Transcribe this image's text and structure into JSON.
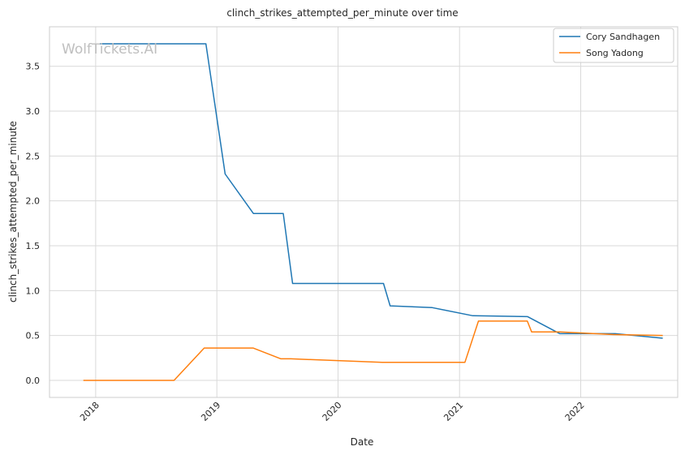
{
  "chart_data": {
    "type": "line",
    "title": "clinch_strikes_attempted_per_minute over time",
    "xlabel": "Date",
    "ylabel": "clinch_strikes_attempted_per_minute",
    "watermark": "WolfTickets.AI",
    "xlim": [
      "2017-08-15",
      "2022-10-20"
    ],
    "ylim": [
      -0.19,
      3.94
    ],
    "x_ticks": [
      "2018",
      "2019",
      "2020",
      "2021",
      "2022"
    ],
    "y_ticks": [
      "0.0",
      "0.5",
      "1.0",
      "1.5",
      "2.0",
      "2.5",
      "3.0",
      "3.5"
    ],
    "grid": true,
    "legend_position": "upper right",
    "series": [
      {
        "name": "Cory Sandhagen",
        "color": "#1f77b4",
        "points": [
          [
            "2018-01-14",
            3.75
          ],
          [
            "2018-11-29",
            3.75
          ],
          [
            "2019-01-26",
            2.3
          ],
          [
            "2019-04-21",
            1.86
          ],
          [
            "2019-07-20",
            1.86
          ],
          [
            "2019-08-17",
            1.08
          ],
          [
            "2020-05-17",
            1.08
          ],
          [
            "2020-06-06",
            0.83
          ],
          [
            "2020-10-11",
            0.81
          ],
          [
            "2021-02-10",
            0.72
          ],
          [
            "2021-07-25",
            0.71
          ],
          [
            "2021-10-30",
            0.52
          ],
          [
            "2022-04-15",
            0.52
          ],
          [
            "2022-09-05",
            0.47
          ]
        ]
      },
      {
        "name": "Song Yadong",
        "color": "#ff7f0e",
        "points": [
          [
            "2017-11-25",
            0.0
          ],
          [
            "2018-08-25",
            0.0
          ],
          [
            "2018-11-24",
            0.36
          ],
          [
            "2019-04-20",
            0.36
          ],
          [
            "2019-07-13",
            0.24
          ],
          [
            "2019-08-12",
            0.24
          ],
          [
            "2020-05-13",
            0.2
          ],
          [
            "2021-01-17",
            0.2
          ],
          [
            "2021-02-27",
            0.66
          ],
          [
            "2021-07-24",
            0.66
          ],
          [
            "2021-08-06",
            0.54
          ],
          [
            "2021-10-30",
            0.54
          ],
          [
            "2022-04-10",
            0.51
          ],
          [
            "2022-09-05",
            0.5
          ]
        ]
      }
    ]
  }
}
